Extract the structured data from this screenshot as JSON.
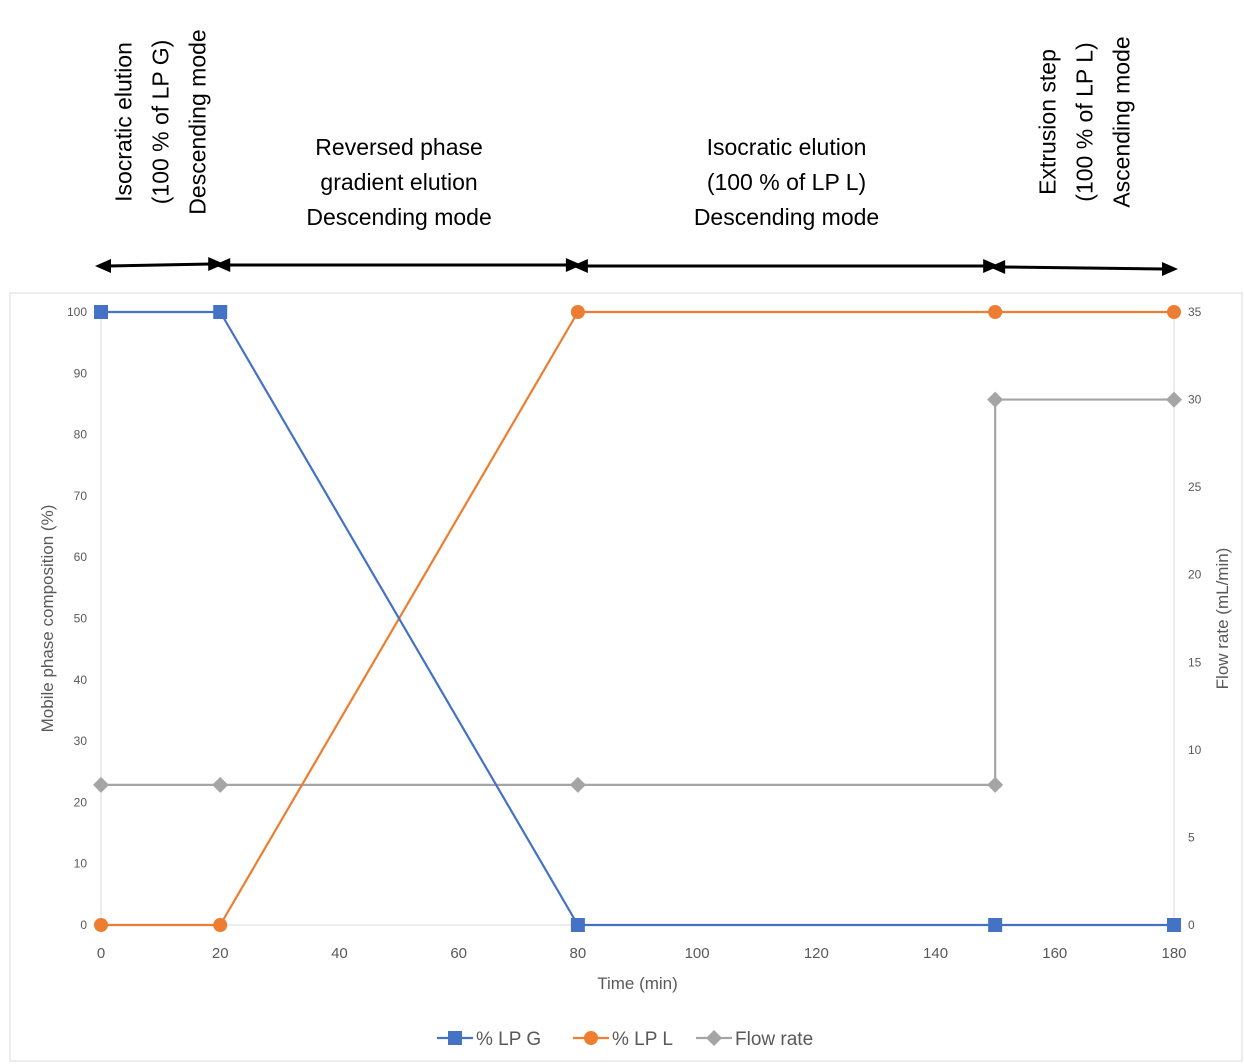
{
  "chart_data": {
    "type": "line",
    "x_label": "Time (min)",
    "y_label_left": "Mobile phase composition (%)",
    "y_label_right": "Flow rate (mL/min)",
    "x_range": [
      0,
      180
    ],
    "x_ticks": [
      0,
      20,
      40,
      60,
      80,
      100,
      120,
      140,
      160,
      180
    ],
    "y_left_range": [
      0,
      100
    ],
    "y_left_ticks": [
      0,
      10,
      20,
      30,
      40,
      50,
      60,
      70,
      80,
      90,
      100
    ],
    "y_right_range": [
      0,
      35
    ],
    "y_right_ticks": [
      0,
      5,
      10,
      15,
      20,
      25,
      30,
      35
    ],
    "grid": false,
    "legend_position": "bottom",
    "series": [
      {
        "name": "% LP G",
        "axis": "left",
        "marker": "square",
        "color": "#4472C4",
        "x": [
          0,
          20,
          80,
          150,
          180
        ],
        "y": [
          100,
          100,
          0,
          0,
          0
        ]
      },
      {
        "name": "% LP L",
        "axis": "left",
        "marker": "circle",
        "color": "#ED7D31",
        "x": [
          0,
          20,
          80,
          150,
          180
        ],
        "y": [
          0,
          0,
          100,
          100,
          100
        ]
      },
      {
        "name": "Flow rate",
        "axis": "right",
        "marker": "diamond",
        "color": "#A5A5A5",
        "x": [
          0,
          20,
          80,
          150,
          150,
          180
        ],
        "y": [
          8,
          8,
          8,
          8,
          30,
          30
        ]
      }
    ],
    "phases": [
      {
        "x_start": 0,
        "x_end": 20,
        "orientation": "vertical",
        "lines": [
          "Isocratic elution",
          "(100 % of LP G)",
          "Descending mode"
        ]
      },
      {
        "x_start": 20,
        "x_end": 80,
        "orientation": "horizontal",
        "lines": [
          "Reversed phase",
          "gradient elution",
          "Descending mode"
        ]
      },
      {
        "x_start": 80,
        "x_end": 150,
        "orientation": "horizontal",
        "lines": [
          "Isocratic elution",
          "(100 % of LP L)",
          "Descending mode"
        ]
      },
      {
        "x_start": 150,
        "x_end": 180,
        "orientation": "vertical",
        "lines": [
          "Extrusion step",
          "(100 % of LP L)",
          "Ascending mode"
        ]
      }
    ]
  }
}
